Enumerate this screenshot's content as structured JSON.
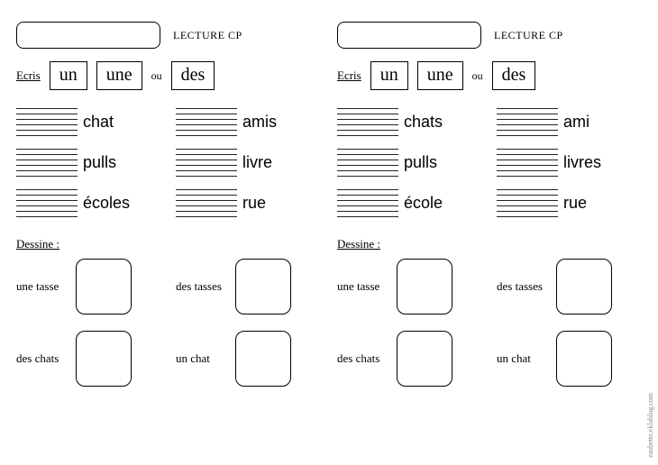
{
  "left": {
    "lecture": "LECTURE CP",
    "ecris": "Ecris",
    "options": [
      "un",
      "une",
      "des"
    ],
    "ou": "ou",
    "words": [
      "chat",
      "amis",
      "pulls",
      "livre",
      "écoles",
      "rue"
    ],
    "dessine": "Dessine :",
    "draw": [
      "une tasse",
      "des tasses",
      "des chats",
      "un chat"
    ]
  },
  "right": {
    "lecture": "LECTURE CP",
    "ecris": "Ecris",
    "options": [
      "un",
      "une",
      "des"
    ],
    "ou": "ou",
    "words": [
      "chats",
      "ami",
      "pulls",
      "livres",
      "école",
      "rue"
    ],
    "dessine": "Dessine :",
    "draw": [
      "une tasse",
      "des tasses",
      "des chats",
      "un chat"
    ]
  },
  "credit": "zaubette.eklablog.com",
  "style": {
    "line_count": 6,
    "colors": {
      "border": "#000000",
      "text": "#000000",
      "bg": "#ffffff",
      "line": "#222222"
    },
    "fonts": {
      "serif": "Times New Roman",
      "cursive": "Brush Script MT",
      "hand": "Comic Sans MS"
    }
  }
}
